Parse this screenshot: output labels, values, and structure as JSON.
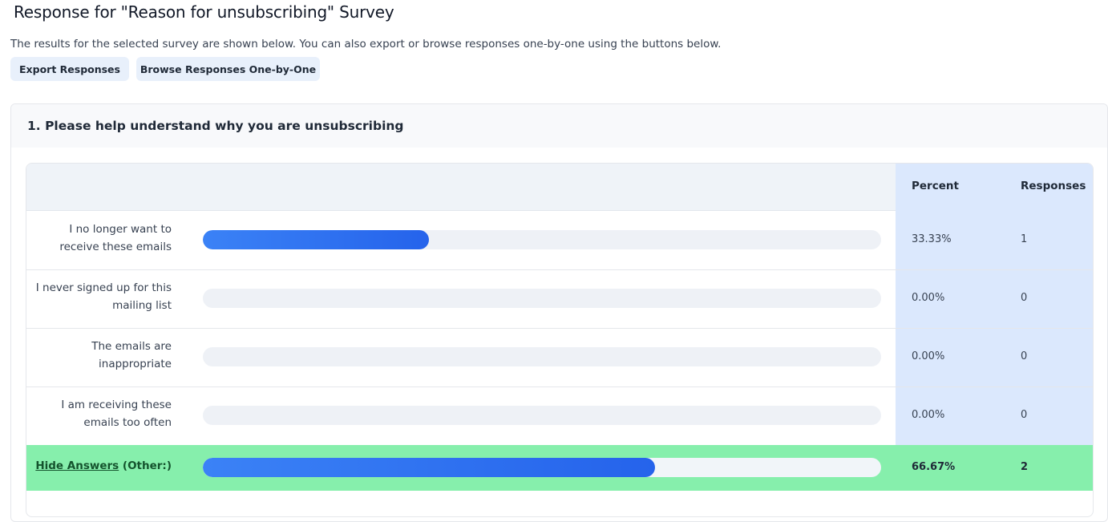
{
  "page": {
    "title": "Response for \"Reason for unsubscribing\" Survey",
    "intro": "The results for the selected survey are shown below. You can also export or browse responses one-by-one using the buttons below."
  },
  "actions": {
    "export_label": "Export Responses",
    "browse_label": "Browse Responses One-by-One"
  },
  "question": {
    "title": "1. Please help understand why you are unsubscribing",
    "columns": {
      "percent": "Percent",
      "responses": "Responses"
    },
    "rows": [
      {
        "label": "I no longer want to receive these emails",
        "percent": "33.33%",
        "responses": "1",
        "fraction": 0.3333
      },
      {
        "label": "I never signed up for this mailing list",
        "percent": "0.00%",
        "responses": "0",
        "fraction": 0
      },
      {
        "label": "The emails are inappropriate",
        "percent": "0.00%",
        "responses": "0",
        "fraction": 0
      },
      {
        "label": "I am receiving these emails too often",
        "percent": "0.00%",
        "responses": "0",
        "fraction": 0
      }
    ],
    "other": {
      "link": "Hide Answers",
      "label": "(Other:)",
      "percent": "66.67%",
      "responses": "2",
      "fraction": 0.6667
    }
  },
  "colors": {
    "bar_fill": "#2563eb",
    "stat_column": "#dbe8fd",
    "other_row": "#86efac",
    "button_bg": "#e8f0fb"
  }
}
